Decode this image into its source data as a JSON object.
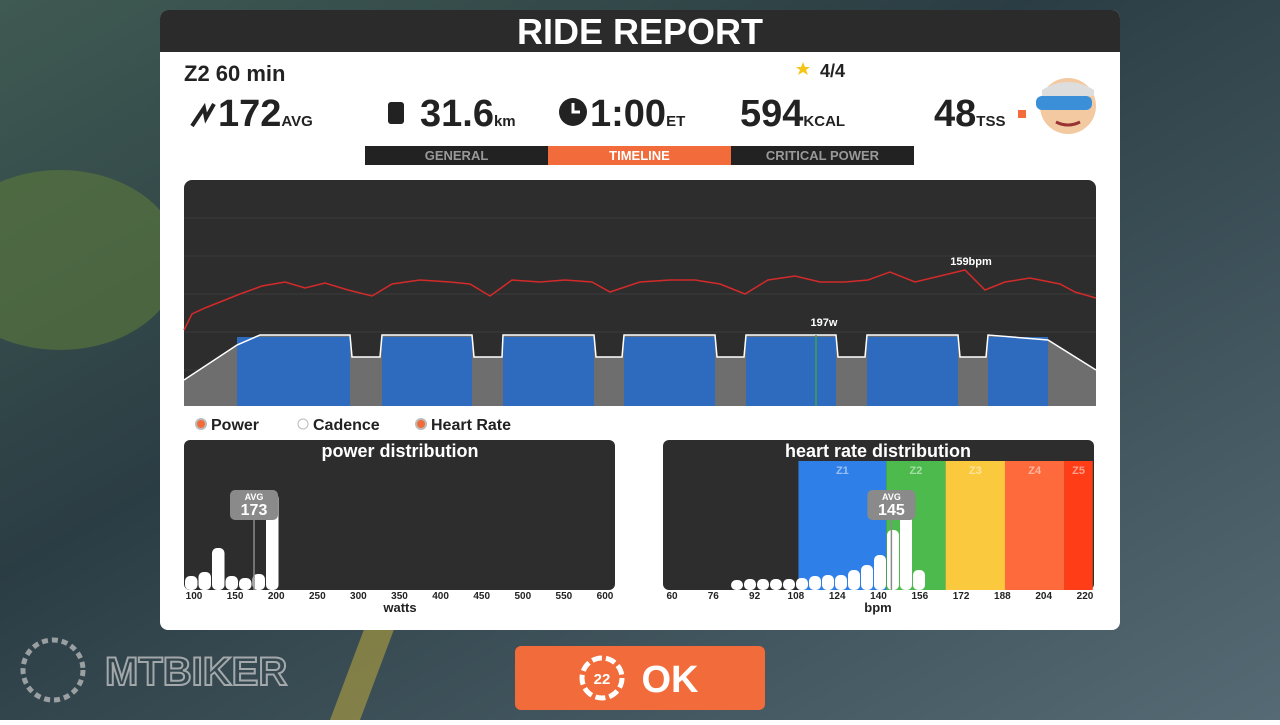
{
  "header": {
    "title": "RIDE REPORT"
  },
  "workout": {
    "name": "Z2 60 min",
    "rating": "4/4"
  },
  "stats": [
    {
      "value": "172",
      "unit": "AVG"
    },
    {
      "value": "31.6",
      "unit": "km"
    },
    {
      "value": "1:00",
      "unit": "ET"
    },
    {
      "value": "594",
      "unit": "KCAL"
    },
    {
      "value": "48",
      "unit": "TSS"
    }
  ],
  "tabs": {
    "items": [
      "GENERAL",
      "TIMELINE",
      "CRITICAL POWER"
    ],
    "active": 1
  },
  "timeline": {
    "hr_peak_label": "159bpm",
    "power_label": "197w",
    "legend": [
      {
        "label": "Power",
        "on": true
      },
      {
        "label": "Cadence",
        "on": false
      },
      {
        "label": "Heart Rate",
        "on": true
      }
    ]
  },
  "power_distribution": {
    "title": "power distribution",
    "axis_label": "watts",
    "xlim": [
      100,
      600
    ],
    "xticks": [
      100,
      150,
      200,
      250,
      300,
      350,
      400,
      450,
      500,
      550,
      600
    ],
    "avg_label": "AVG",
    "avg": 173,
    "bars": [
      14,
      18,
      42,
      14,
      12,
      16,
      97
    ]
  },
  "hr_distribution": {
    "title": "heart rate distribution",
    "axis_label": "bpm",
    "xlim": [
      60,
      220
    ],
    "xticks": [
      60,
      76,
      92,
      108,
      124,
      140,
      156,
      172,
      188,
      204,
      220
    ],
    "avg_label": "AVG",
    "avg": 145,
    "zones": [
      {
        "name": "Z1",
        "color": "#2f7fe8",
        "from": 109,
        "to": 143
      },
      {
        "name": "Z2",
        "color": "#4cba4c",
        "from": 143,
        "to": 166
      },
      {
        "name": "Z3",
        "color": "#fbc93d",
        "from": 166,
        "to": 189
      },
      {
        "name": "Z4",
        "color": "#ff6a3d",
        "from": 189,
        "to": 212
      },
      {
        "name": "Z5",
        "color": "#ff3d16",
        "from": 212,
        "to": 223
      }
    ],
    "bars": [
      10,
      11,
      11,
      11,
      11,
      12,
      14,
      15,
      15,
      20,
      25,
      35,
      60,
      95,
      20
    ]
  },
  "button": {
    "label": "OK",
    "badge": "22"
  },
  "watermark": "MTBIKER"
}
